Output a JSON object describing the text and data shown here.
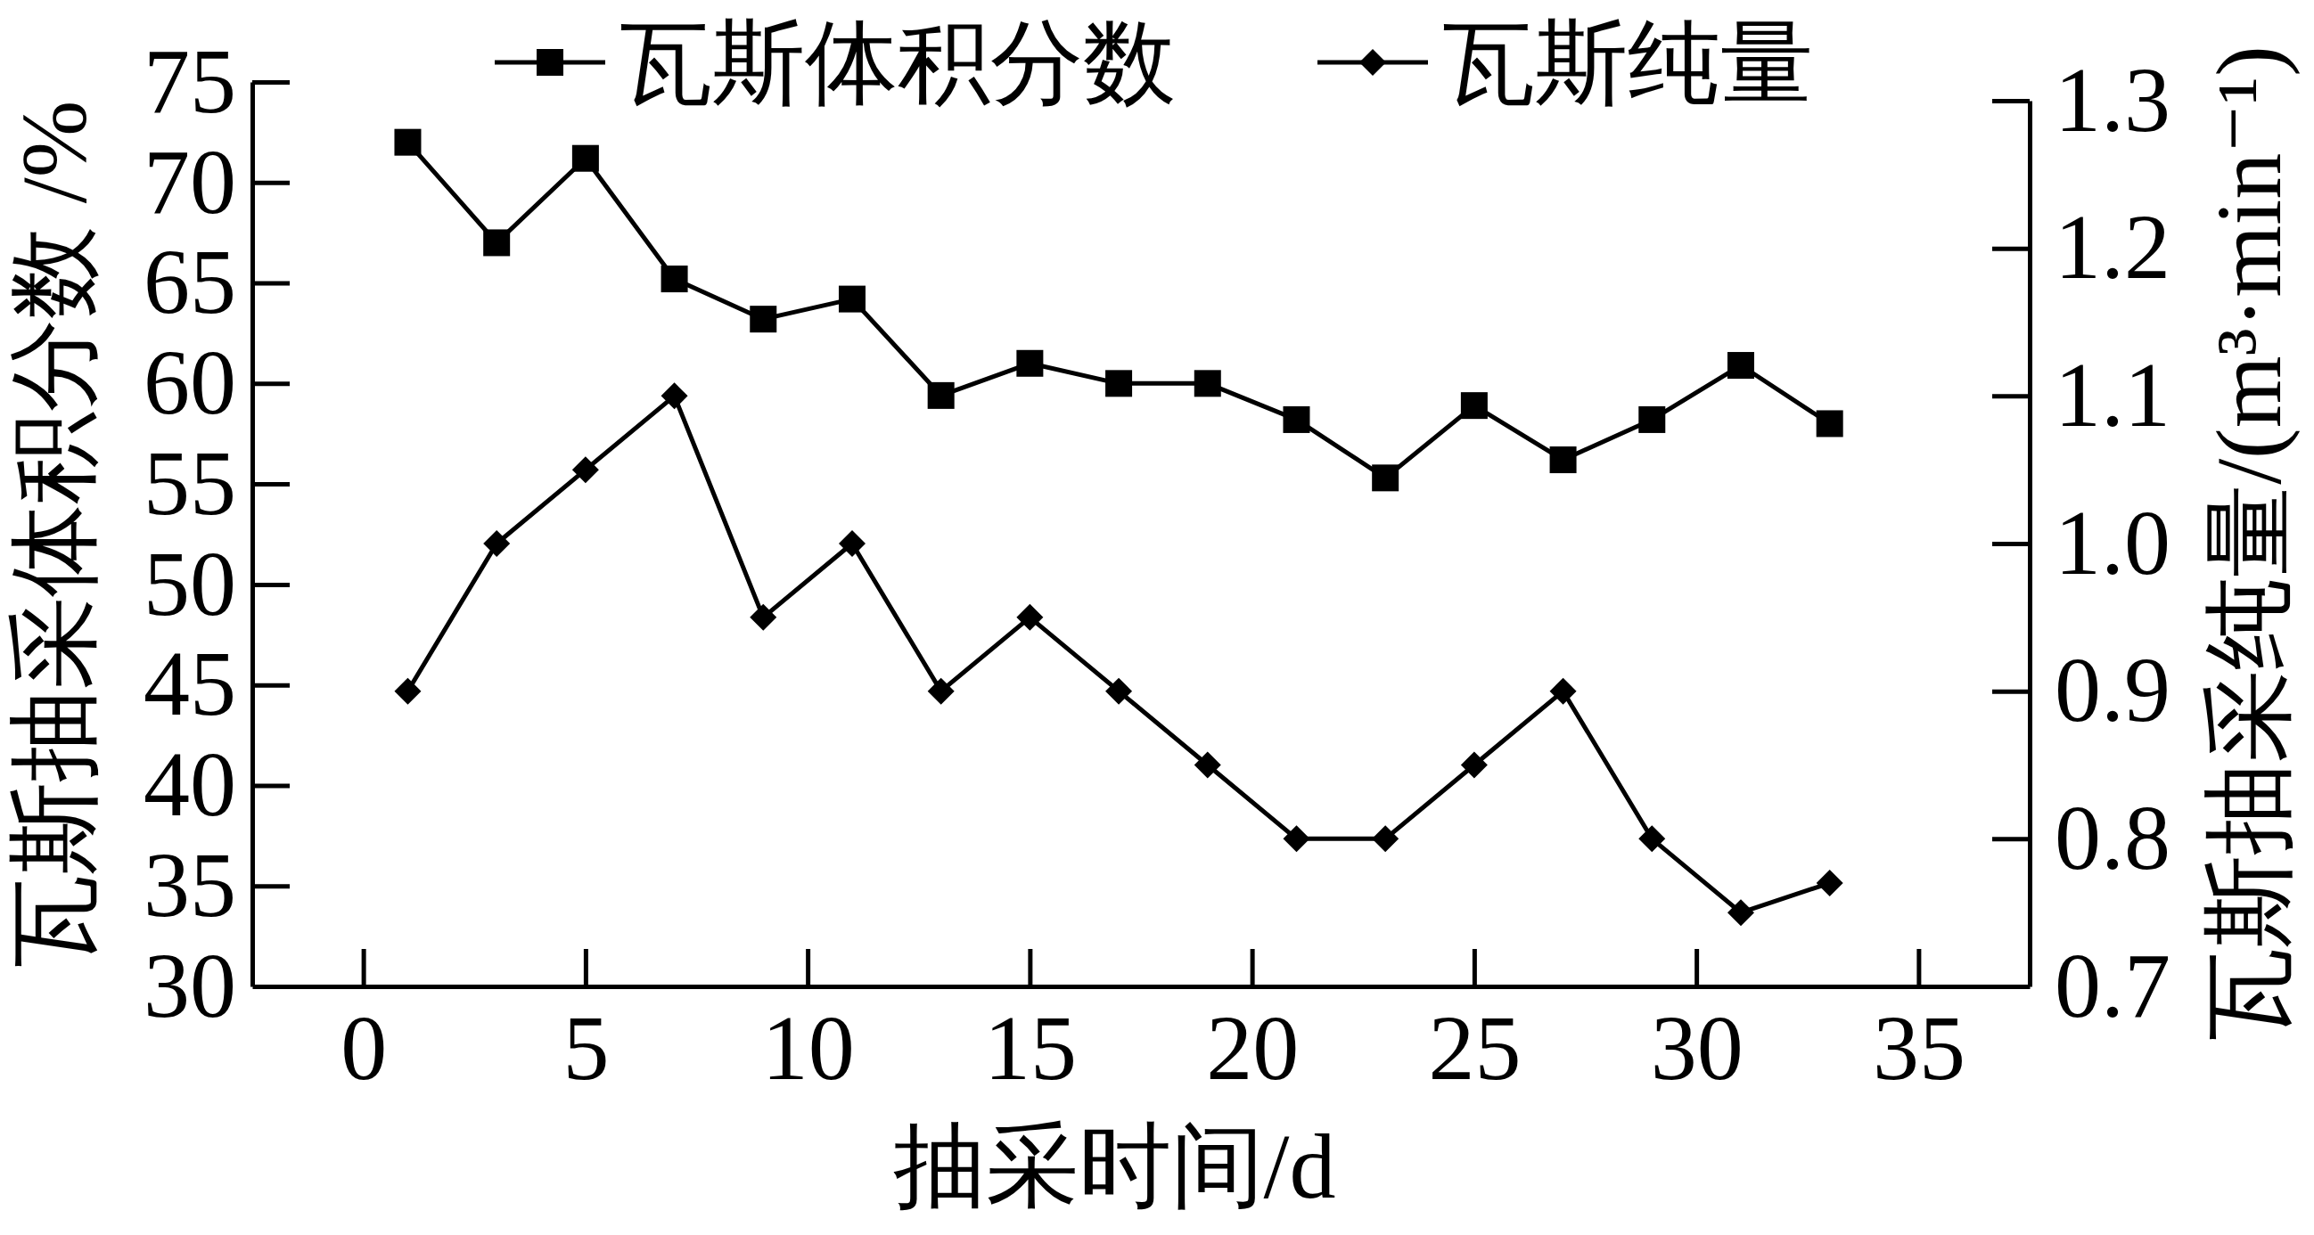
{
  "chart_data": {
    "type": "line",
    "xlabel": "抽采时间/d",
    "ylabel": "瓦斯抽采体积分数 /%",
    "y2label": "瓦斯抽采纯量/(m³·min⁻¹)",
    "x": [
      1,
      3,
      5,
      7,
      9,
      11,
      13,
      15,
      17,
      19,
      21,
      23,
      25,
      27,
      29,
      31,
      33
    ],
    "xlim": [
      -2.5,
      37.5
    ],
    "xticks": [
      0,
      5,
      10,
      15,
      20,
      25,
      30,
      35
    ],
    "ylim": [
      30,
      75
    ],
    "yticks": [
      30,
      35,
      40,
      45,
      50,
      55,
      60,
      65,
      70,
      75
    ],
    "y2lim": [
      0.7,
      1.3
    ],
    "y2ticks": [
      0.7,
      0.8,
      0.9,
      {
        "value": 1,
        "label": "1.0"
      },
      1.1,
      1.2,
      1.3
    ],
    "legend": "top",
    "series": [
      {
        "name": "瓦斯体积分数",
        "color": "#000000",
        "marker": "square",
        "values": [
          72,
          67,
          71.2,
          65.2,
          63.2,
          64.2,
          59.4,
          61,
          60,
          60,
          58.2,
          55.3,
          58.9,
          56.2,
          58.2,
          60.9,
          58
        ]
      },
      {
        "name": "瓦斯纯量",
        "color": "#000000",
        "marker": "diamond",
        "axis": "y2",
        "values": [
          0.9,
          1.0,
          1.05,
          1.1,
          0.95,
          1.0,
          0.9,
          0.95,
          0.9,
          0.85,
          0.8,
          0.8,
          0.85,
          0.9,
          0.8,
          0.75,
          0.77
        ]
      }
    ]
  }
}
